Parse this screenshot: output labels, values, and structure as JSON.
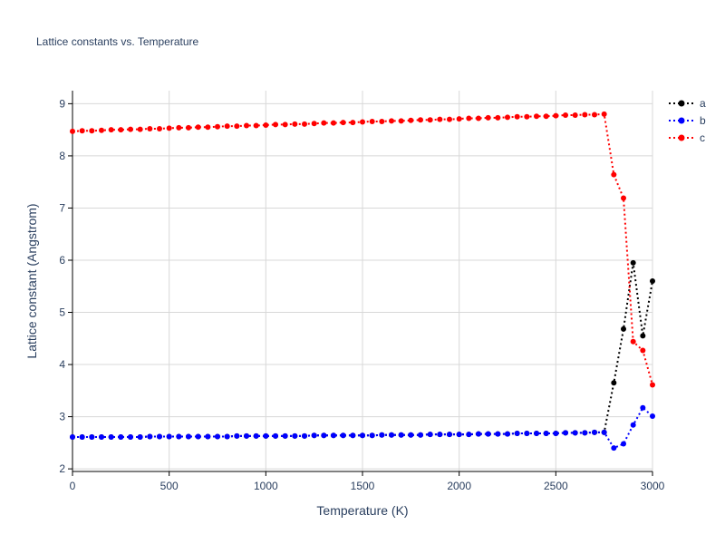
{
  "chart_data": {
    "type": "line",
    "title": "Lattice constants vs. Temperature",
    "xlabel": "Temperature (K)",
    "ylabel": "Lattice constant (Angstrom)",
    "xlim": [
      0,
      3000
    ],
    "ylim": [
      1.95,
      9.25
    ],
    "xticks": [
      0,
      500,
      1000,
      1500,
      2000,
      2500,
      3000
    ],
    "yticks": [
      2,
      3,
      4,
      5,
      6,
      7,
      8,
      9
    ],
    "grid": true,
    "legend_position": "top-right",
    "line_style": "dotted",
    "markers": true,
    "x": [
      0,
      50,
      100,
      150,
      200,
      250,
      300,
      350,
      400,
      450,
      500,
      550,
      600,
      650,
      700,
      750,
      800,
      850,
      900,
      950,
      1000,
      1050,
      1100,
      1150,
      1200,
      1250,
      1300,
      1350,
      1400,
      1450,
      1500,
      1550,
      1600,
      1650,
      1700,
      1750,
      1800,
      1850,
      1900,
      1950,
      2000,
      2050,
      2100,
      2150,
      2200,
      2250,
      2300,
      2350,
      2400,
      2450,
      2500,
      2550,
      2600,
      2650,
      2700,
      2750,
      2800,
      2850,
      2900,
      2950,
      3000
    ],
    "series": [
      {
        "name": "a",
        "color": "#000000",
        "values": [
          2.61,
          2.61,
          2.61,
          2.61,
          2.61,
          2.61,
          2.61,
          2.61,
          2.62,
          2.62,
          2.62,
          2.62,
          2.62,
          2.62,
          2.62,
          2.62,
          2.62,
          2.63,
          2.63,
          2.63,
          2.63,
          2.63,
          2.63,
          2.63,
          2.63,
          2.64,
          2.64,
          2.64,
          2.64,
          2.64,
          2.64,
          2.64,
          2.65,
          2.65,
          2.65,
          2.65,
          2.65,
          2.66,
          2.66,
          2.66,
          2.66,
          2.66,
          2.67,
          2.67,
          2.67,
          2.67,
          2.68,
          2.68,
          2.68,
          2.68,
          2.68,
          2.69,
          2.69,
          2.69,
          2.7,
          2.7,
          3.65,
          4.68,
          5.95,
          4.55,
          5.6
        ]
      },
      {
        "name": "b",
        "color": "#0000ff",
        "values": [
          2.61,
          2.61,
          2.61,
          2.61,
          2.61,
          2.61,
          2.61,
          2.61,
          2.62,
          2.62,
          2.62,
          2.62,
          2.62,
          2.62,
          2.62,
          2.62,
          2.62,
          2.63,
          2.63,
          2.63,
          2.63,
          2.63,
          2.63,
          2.63,
          2.63,
          2.64,
          2.64,
          2.64,
          2.64,
          2.64,
          2.64,
          2.64,
          2.65,
          2.65,
          2.65,
          2.65,
          2.65,
          2.66,
          2.66,
          2.66,
          2.66,
          2.66,
          2.67,
          2.67,
          2.67,
          2.67,
          2.68,
          2.68,
          2.68,
          2.68,
          2.68,
          2.69,
          2.69,
          2.69,
          2.7,
          2.7,
          2.4,
          2.48,
          2.84,
          3.17,
          3.01
        ]
      },
      {
        "name": "c",
        "color": "#ff0000",
        "values": [
          8.47,
          8.48,
          8.48,
          8.49,
          8.5,
          8.5,
          8.51,
          8.51,
          8.52,
          8.52,
          8.53,
          8.54,
          8.54,
          8.55,
          8.55,
          8.56,
          8.57,
          8.57,
          8.58,
          8.58,
          8.59,
          8.6,
          8.6,
          8.61,
          8.61,
          8.62,
          8.63,
          8.63,
          8.64,
          8.64,
          8.65,
          8.66,
          8.66,
          8.67,
          8.67,
          8.68,
          8.69,
          8.69,
          8.7,
          8.7,
          8.71,
          8.72,
          8.72,
          8.73,
          8.73,
          8.74,
          8.75,
          8.75,
          8.76,
          8.76,
          8.77,
          8.78,
          8.78,
          8.79,
          8.79,
          8.8,
          7.64,
          7.19,
          4.44,
          4.27,
          3.61
        ]
      }
    ]
  }
}
